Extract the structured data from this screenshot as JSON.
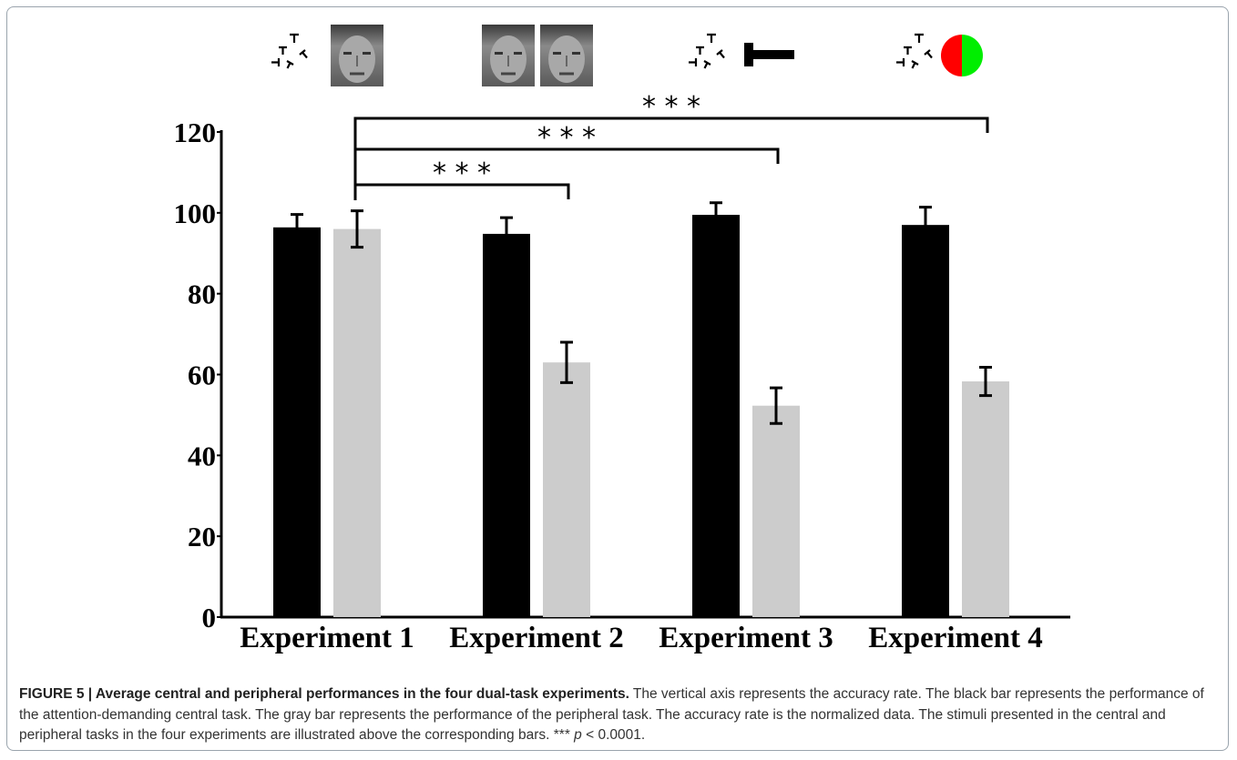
{
  "chart_data": {
    "type": "bar",
    "categories": [
      "Experiment 1",
      "Experiment 2",
      "Experiment 3",
      "Experiment 4"
    ],
    "series": [
      {
        "color": "#000000",
        "values": [
          96.4,
          94.8,
          99.5,
          97
        ],
        "errors": [
          3.2,
          4,
          3,
          4.4
        ]
      },
      {
        "color": "#cccccc",
        "values": [
          96,
          63,
          52.3,
          58.3
        ],
        "errors": [
          4.5,
          5,
          4.4,
          3.5
        ]
      }
    ],
    "ylim": [
      0,
      120
    ],
    "yticks": [
      0,
      20,
      40,
      60,
      80,
      100,
      120
    ],
    "grid": false,
    "annotations": [
      {
        "label": "* * *"
      },
      {
        "label": "* * *"
      },
      {
        "label": "* * *"
      }
    ]
  },
  "caption": {
    "title": "FIGURE 5 | Average central and peripheral performances in the four dual-task experiments.",
    "body": "The vertical axis represents the accuracy rate. The black bar represents the performance of the attention-demanding central task. The gray bar represents the performance of the peripheral task. The accuracy rate is the normalized data. The stimuli presented in the central and peripheral tasks in the four experiments are illustrated above the corresponding bars.",
    "marker": "***",
    "stat": "p",
    "threshold": "< 0.0001."
  }
}
